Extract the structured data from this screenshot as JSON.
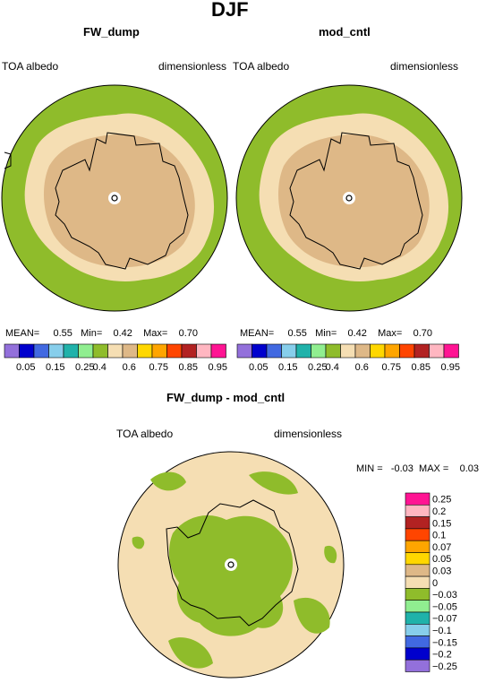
{
  "page": {
    "title": "DJF",
    "diff_title": "FW_dump - mod_cntl",
    "panels": [
      {
        "title": "FW_dump",
        "left_label": "TOA albedo",
        "right_label": "dimensionless",
        "stats": {
          "mean_label": "MEAN=",
          "mean": "0.55",
          "min_label": "Min=",
          "min": "0.42",
          "max_label": "Max=",
          "max": "0.70"
        }
      },
      {
        "title": "mod_cntl",
        "left_label": "TOA albedo",
        "right_label": "dimensionless",
        "stats": {
          "mean_label": "MEAN=",
          "mean": "0.55",
          "min_label": "Min=",
          "min": "0.42",
          "max_label": "Max=",
          "max": "0.70"
        }
      }
    ],
    "diff_panel": {
      "left_label": "TOA albedo",
      "right_label": "dimensionless",
      "min_label": "MIN =",
      "min": "-0.03",
      "max_label": "MAX =",
      "max": "0.03"
    }
  },
  "colorbar_h": {
    "colors": [
      "#9370db",
      "#0000cd",
      "#4169e1",
      "#87ceeb",
      "#20b2aa",
      "#90ee90",
      "#8fbc2b",
      "#f5deb3",
      "#deb887",
      "#ffd700",
      "#ffa500",
      "#ff4500",
      "#b22222",
      "#ffb6c1",
      "#ff1493"
    ],
    "ticks": [
      "0.05",
      "0.15",
      "0.25",
      "0.4",
      "0.6",
      "0.75",
      "0.85",
      "0.95"
    ]
  },
  "colorbar_v": {
    "colors_top_to_bottom": [
      "#ff1493",
      "#ffb6c1",
      "#b22222",
      "#ff4500",
      "#ffa500",
      "#ffd700",
      "#deb887",
      "#f5deb3",
      "#8fbc2b",
      "#90ee90",
      "#20b2aa",
      "#87ceeb",
      "#4169e1",
      "#0000cd",
      "#9370db"
    ],
    "ticks": [
      "0.25",
      "0.2",
      "0.15",
      "0.1",
      "0.07",
      "0.05",
      "0.03",
      "0",
      "−0.03",
      "−0.05",
      "−0.07",
      "−0.1",
      "−0.15",
      "−0.2",
      "−0.25"
    ]
  },
  "map_colors": {
    "ocean": "#8fbc2b",
    "ice_light": "#f5deb3",
    "ice_dark": "#deb887"
  },
  "icons": {
    "pole_marker": "pole-circle-icon"
  }
}
